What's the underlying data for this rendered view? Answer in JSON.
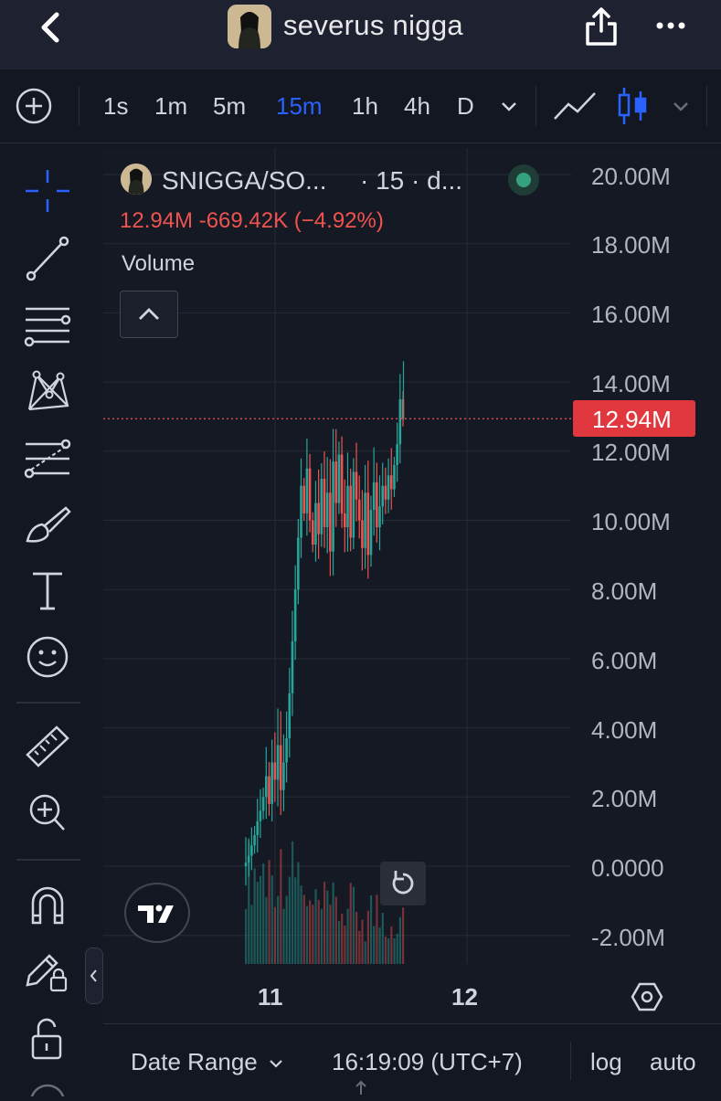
{
  "header": {
    "title": "severus nigga",
    "back_icon": "chevron-left-icon",
    "share_icon": "share-icon",
    "more_icon": "more-horizontal-icon"
  },
  "toolbar": {
    "add_icon": "plus-circle-icon",
    "timeframes": [
      "1s",
      "1m",
      "5m",
      "15m",
      "1h",
      "4h",
      "D"
    ],
    "active_timeframe": "15m",
    "chart_type_icons": [
      "line-chart-icon",
      "candles-icon"
    ]
  },
  "drawing_tools": [
    "crosshair-icon",
    "trend-line-icon",
    "horizontal-lines-icon",
    "pattern-icon",
    "fib-icon",
    "brush-icon",
    "text-icon",
    "emoji-icon",
    "ruler-icon",
    "zoom-in-icon",
    "magnet-icon",
    "lock-pencil-icon",
    "unlock-icon"
  ],
  "legend": {
    "symbol": "SNIGGA/SO...",
    "interval": "· 15 · d...",
    "ohlc": "12.94M  -669.42K (−4.92%)",
    "volume_label": "Volume"
  },
  "price_axis": {
    "labels": [
      "20.00M",
      "18.00M",
      "16.00M",
      "14.00M",
      "12.00M",
      "10.00M",
      "8.00M",
      "6.00M",
      "4.00M",
      "2.00M",
      "0.0000",
      "-2.00M"
    ],
    "current_price": "12.94M"
  },
  "time_axis": {
    "labels": [
      "11",
      "12"
    ]
  },
  "bottom_bar": {
    "date_range": "Date Range",
    "clock": "16:19:09 (UTC+7)",
    "log": "log",
    "auto": "auto"
  },
  "colors": {
    "up": "#26a69a",
    "down": "#ef5350",
    "accent": "#2962ff",
    "price_tag": "#e0383e"
  },
  "chart_data": {
    "type": "candlestick",
    "ylim": [
      -2000000,
      20000000
    ],
    "current": 12940000,
    "x_ticks": [
      "11",
      "12"
    ],
    "close_series": [
      0.1,
      0.3,
      0.6,
      0.9,
      1.3,
      1.6,
      2.0,
      2.6,
      1.8,
      3.0,
      2.5,
      3.5,
      2.2,
      3.0,
      3.7,
      5.0,
      6.5,
      8.0,
      9.5,
      11.0,
      10.2,
      11.5,
      10.0,
      9.3,
      10.5,
      9.6,
      11.2,
      9.8,
      10.8,
      9.1,
      11.7,
      10.5,
      11.9,
      10.2,
      9.8,
      11.0,
      9.5,
      11.4,
      10.6,
      10.0,
      9.2,
      10.8,
      9.0,
      10.3,
      11.1,
      9.8,
      10.4,
      11.0,
      10.6,
      11.3,
      10.9,
      11.6,
      12.2,
      13.5,
      12.94
    ]
  }
}
